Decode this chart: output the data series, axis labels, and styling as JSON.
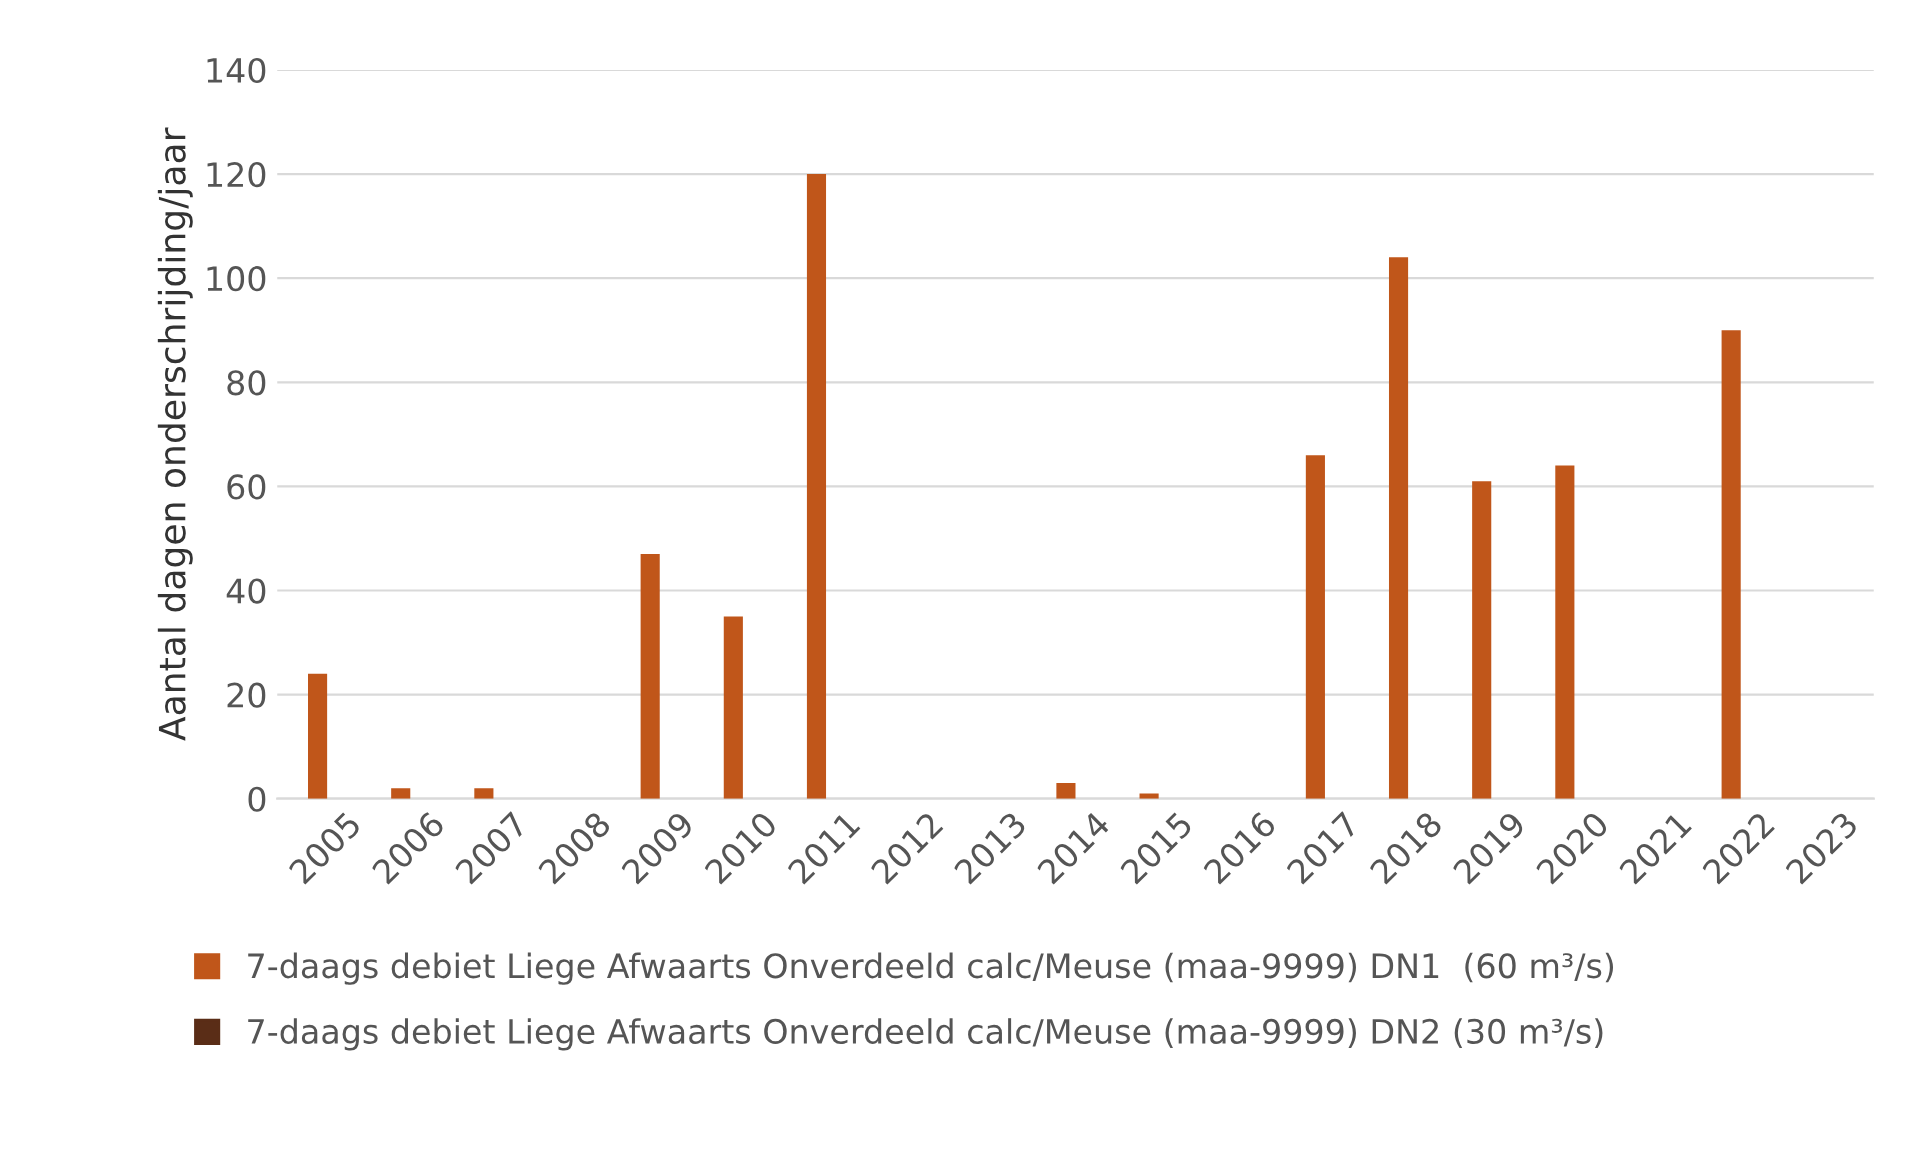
{
  "chart_data": {
    "type": "bar",
    "ylabel": "Aantal dagen onderschrijding/jaar",
    "categories": [
      "2005",
      "2006",
      "2007",
      "2008",
      "2009",
      "2010",
      "2011",
      "2012",
      "2013",
      "2014",
      "2015",
      "2016",
      "2017",
      "2018",
      "2019",
      "2020",
      "2021",
      "2022",
      "2023"
    ],
    "series": [
      {
        "name": "7-daags debiet Liege Afwaarts Onverdeeld calc/Meuse (maa-9999) DN1  (60 m³/s)",
        "color": "#c0561a",
        "values": [
          24,
          2,
          2,
          0,
          47,
          35,
          120,
          0,
          0,
          3,
          1,
          0,
          66,
          104,
          61,
          64,
          0,
          90,
          0
        ]
      },
      {
        "name": "7-daags debiet Liege Afwaarts Onverdeeld calc/Meuse (maa-9999) DN2 (30 m³/s)",
        "color": "#5a2d17",
        "values": [
          0,
          0,
          0,
          0,
          0,
          0,
          0,
          0,
          0,
          0,
          0,
          0,
          0,
          0,
          0,
          0,
          0,
          0,
          0
        ]
      }
    ],
    "ylim": [
      0,
      140
    ],
    "yticks": [
      0,
      20,
      40,
      60,
      80,
      100,
      120,
      140
    ],
    "grid": "y",
    "legend": "bottom"
  }
}
